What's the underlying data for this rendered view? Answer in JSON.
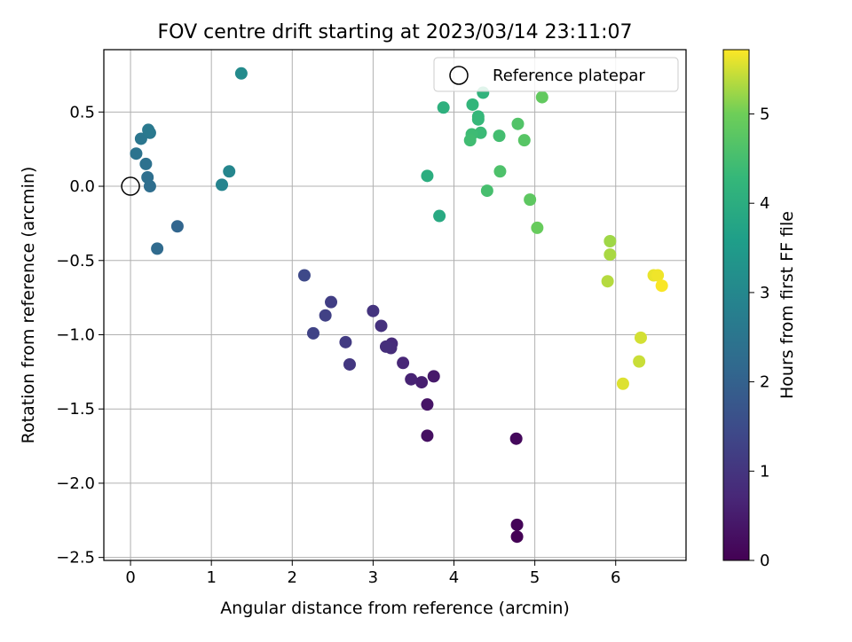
{
  "chart_data": {
    "type": "scatter",
    "title": "FOV centre drift starting at 2023/03/14 23:11:07",
    "xlabel": "Angular distance from reference (arcmin)",
    "ylabel": "Rotation from reference (arcmin)",
    "xlim": [
      -0.33,
      6.87
    ],
    "ylim": [
      -2.52,
      0.92
    ],
    "xticks": [
      0,
      1,
      2,
      3,
      4,
      5,
      6
    ],
    "xtick_labels": [
      "0",
      "1",
      "2",
      "3",
      "4",
      "5",
      "6"
    ],
    "yticks": [
      0.5,
      0.0,
      -0.5,
      -1.0,
      -1.5,
      -2.0,
      -2.5
    ],
    "ytick_labels": [
      "0.5",
      "0.0",
      "−0.5",
      "−1.0",
      "−1.5",
      "−2.0",
      "−2.5"
    ],
    "grid": true,
    "legend": {
      "position": "top-right",
      "entries": [
        {
          "label": "Reference platepar",
          "marker": "open-circle"
        }
      ]
    },
    "reference_point": {
      "x": 0.0,
      "y": 0.0
    },
    "colorbar": {
      "label": "Hours from first FF file",
      "colormap": "viridis",
      "range": [
        0,
        5.72
      ],
      "ticks": [
        0,
        1,
        2,
        3,
        4,
        5
      ],
      "tick_labels": [
        "0",
        "1",
        "2",
        "3",
        "4",
        "5"
      ]
    },
    "points": [
      {
        "x": 4.78,
        "y": -2.36,
        "c": 0.02
      },
      {
        "x": 4.78,
        "y": -2.28,
        "c": 0.08
      },
      {
        "x": 4.77,
        "y": -1.7,
        "c": 0.15
      },
      {
        "x": 3.67,
        "y": -1.68,
        "c": 0.25
      },
      {
        "x": 3.67,
        "y": -1.47,
        "c": 0.35
      },
      {
        "x": 3.75,
        "y": -1.28,
        "c": 0.45
      },
      {
        "x": 3.6,
        "y": -1.32,
        "c": 0.55
      },
      {
        "x": 3.47,
        "y": -1.3,
        "c": 0.62
      },
      {
        "x": 3.37,
        "y": -1.19,
        "c": 0.7
      },
      {
        "x": 3.23,
        "y": -1.06,
        "c": 0.78
      },
      {
        "x": 3.22,
        "y": -1.09,
        "c": 0.82
      },
      {
        "x": 3.16,
        "y": -1.08,
        "c": 0.86
      },
      {
        "x": 3.1,
        "y": -0.94,
        "c": 0.92
      },
      {
        "x": 3.0,
        "y": -0.84,
        "c": 0.98
      },
      {
        "x": 2.71,
        "y": -1.2,
        "c": 1.05
      },
      {
        "x": 2.66,
        "y": -1.05,
        "c": 1.12
      },
      {
        "x": 2.48,
        "y": -0.78,
        "c": 1.2
      },
      {
        "x": 2.41,
        "y": -0.87,
        "c": 1.25
      },
      {
        "x": 2.26,
        "y": -0.99,
        "c": 1.3
      },
      {
        "x": 2.15,
        "y": -0.6,
        "c": 1.42
      },
      {
        "x": 0.58,
        "y": -0.27,
        "c": 2.1
      },
      {
        "x": 0.33,
        "y": -0.42,
        "c": 2.22
      },
      {
        "x": 0.24,
        "y": 0.0,
        "c": 2.3
      },
      {
        "x": 0.21,
        "y": 0.06,
        "c": 2.35
      },
      {
        "x": 0.19,
        "y": 0.15,
        "c": 2.4
      },
      {
        "x": 0.07,
        "y": 0.22,
        "c": 2.45
      },
      {
        "x": 0.13,
        "y": 0.32,
        "c": 2.52
      },
      {
        "x": 0.24,
        "y": 0.36,
        "c": 2.58
      },
      {
        "x": 0.22,
        "y": 0.38,
        "c": 2.62
      },
      {
        "x": 1.13,
        "y": 0.01,
        "c": 2.9
      },
      {
        "x": 1.22,
        "y": 0.1,
        "c": 2.97
      },
      {
        "x": 1.37,
        "y": 0.76,
        "c": 3.1
      },
      {
        "x": 3.82,
        "y": -0.2,
        "c": 3.9
      },
      {
        "x": 3.67,
        "y": 0.07,
        "c": 4.0
      },
      {
        "x": 3.87,
        "y": 0.53,
        "c": 4.08
      },
      {
        "x": 4.36,
        "y": 0.63,
        "c": 4.15
      },
      {
        "x": 4.23,
        "y": 0.55,
        "c": 4.22
      },
      {
        "x": 4.3,
        "y": 0.47,
        "c": 4.26
      },
      {
        "x": 4.3,
        "y": 0.45,
        "c": 4.3
      },
      {
        "x": 4.33,
        "y": 0.36,
        "c": 4.36
      },
      {
        "x": 4.22,
        "y": 0.35,
        "c": 4.4
      },
      {
        "x": 4.2,
        "y": 0.31,
        "c": 4.44
      },
      {
        "x": 4.56,
        "y": 0.34,
        "c": 4.48
      },
      {
        "x": 4.41,
        "y": -0.03,
        "c": 4.52
      },
      {
        "x": 4.57,
        "y": 0.1,
        "c": 4.6
      },
      {
        "x": 4.79,
        "y": 0.42,
        "c": 4.66
      },
      {
        "x": 4.87,
        "y": 0.31,
        "c": 4.72
      },
      {
        "x": 4.94,
        "y": -0.09,
        "c": 4.8
      },
      {
        "x": 5.09,
        "y": 0.6,
        "c": 4.86
      },
      {
        "x": 5.03,
        "y": -0.28,
        "c": 4.92
      },
      {
        "x": 5.93,
        "y": -0.37,
        "c": 5.25
      },
      {
        "x": 5.93,
        "y": -0.46,
        "c": 5.3
      },
      {
        "x": 5.9,
        "y": -0.64,
        "c": 5.36
      },
      {
        "x": 6.29,
        "y": -1.18,
        "c": 5.46
      },
      {
        "x": 6.31,
        "y": -1.02,
        "c": 5.51
      },
      {
        "x": 6.09,
        "y": -1.33,
        "c": 5.56
      },
      {
        "x": 6.47,
        "y": -0.6,
        "c": 5.62
      },
      {
        "x": 6.52,
        "y": -0.6,
        "c": 5.65
      },
      {
        "x": 6.57,
        "y": -0.67,
        "c": 5.7
      }
    ]
  }
}
